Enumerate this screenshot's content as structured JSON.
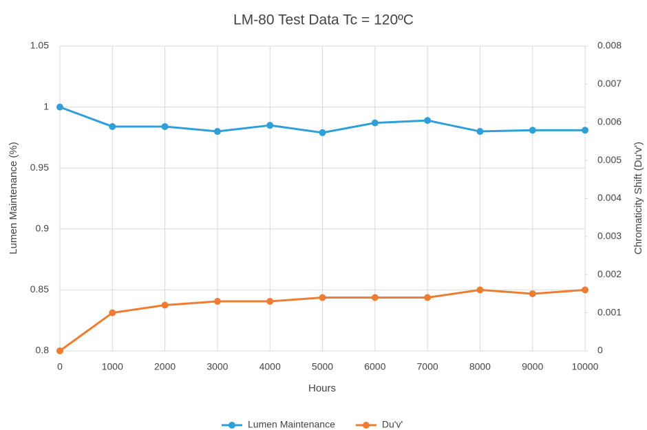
{
  "chart_data": {
    "type": "line",
    "title": "LM-80 Test Data Tc = 120ºC",
    "xlabel": "Hours",
    "ylabel": "Lumen Maintenance (%)",
    "y2label": "Chromaticity Shift (Du'v')",
    "x": [
      0,
      1000,
      2000,
      3000,
      4000,
      5000,
      6000,
      7000,
      8000,
      9000,
      10000
    ],
    "xlim": [
      0,
      10000
    ],
    "xticks": [
      0,
      1000,
      2000,
      3000,
      4000,
      5000,
      6000,
      7000,
      8000,
      9000,
      10000
    ],
    "ylim": [
      0.8,
      1.05
    ],
    "yticks": [
      0.8,
      0.85,
      0.9,
      0.95,
      1,
      1.05
    ],
    "y2lim": [
      0,
      0.008
    ],
    "y2ticks": [
      0,
      0.001,
      0.002,
      0.003,
      0.004,
      0.005,
      0.006,
      0.007,
      0.008
    ],
    "grid": true,
    "legend": "bottom",
    "series": [
      {
        "name": "Lumen Maintenance",
        "color": "#2f9fd8",
        "values": [
          1.0,
          0.984,
          0.984,
          0.98,
          0.985,
          0.979,
          0.987,
          0.989,
          0.98,
          0.981,
          0.981
        ]
      },
      {
        "name": "Du'v'",
        "color": "#ef7d31",
        "axis": "y2",
        "values": [
          0,
          0.001,
          0.0012,
          0.0013,
          0.0013,
          0.0014,
          0.0014,
          0.0014,
          0.0016,
          0.0015,
          0.0016
        ]
      }
    ]
  }
}
